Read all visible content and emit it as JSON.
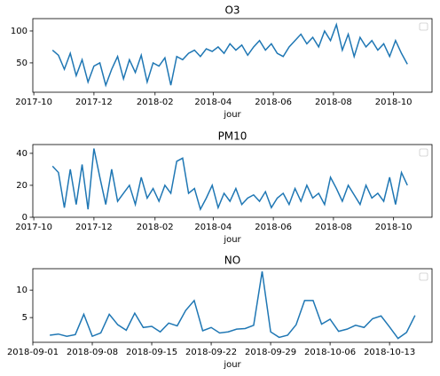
{
  "chart_data": [
    {
      "type": "line",
      "title": "O3",
      "xlabel": "jour",
      "x": [
        "2017-10-20",
        "2017-10-26",
        "2017-11-01",
        "2017-11-07",
        "2017-11-13",
        "2017-11-19",
        "2017-11-25",
        "2017-12-01",
        "2017-12-07",
        "2017-12-13",
        "2017-12-19",
        "2017-12-25",
        "2017-12-31",
        "2018-01-06",
        "2018-01-12",
        "2018-01-18",
        "2018-01-24",
        "2018-01-30",
        "2018-02-05",
        "2018-02-11",
        "2018-02-17",
        "2018-02-23",
        "2018-03-01",
        "2018-03-07",
        "2018-03-13",
        "2018-03-19",
        "2018-03-25",
        "2018-03-31",
        "2018-04-06",
        "2018-04-12",
        "2018-04-18",
        "2018-04-24",
        "2018-04-30",
        "2018-05-06",
        "2018-05-12",
        "2018-05-18",
        "2018-05-24",
        "2018-05-30",
        "2018-06-05",
        "2018-06-11",
        "2018-06-17",
        "2018-06-23",
        "2018-06-29",
        "2018-07-05",
        "2018-07-11",
        "2018-07-17",
        "2018-07-23",
        "2018-07-29",
        "2018-08-04",
        "2018-08-10",
        "2018-08-16",
        "2018-08-22",
        "2018-08-28",
        "2018-09-03",
        "2018-09-09",
        "2018-09-15",
        "2018-09-21",
        "2018-09-27",
        "2018-10-03",
        "2018-10-09",
        "2018-10-15"
      ],
      "series": [
        {
          "color": "#1f77b4",
          "values": [
            70,
            62,
            40,
            65,
            30,
            55,
            20,
            45,
            50,
            15,
            40,
            60,
            25,
            55,
            35,
            62,
            20,
            50,
            45,
            58,
            15,
            60,
            55,
            65,
            70,
            60,
            72,
            68,
            75,
            65,
            80,
            70,
            78,
            62,
            75,
            85,
            70,
            80,
            65,
            60,
            75,
            85,
            95,
            80,
            90,
            75,
            100,
            85,
            110,
            70,
            95,
            60,
            90,
            75,
            85,
            70,
            80,
            60,
            85,
            65,
            48
          ]
        }
      ],
      "xlim": [
        "2017-09-30",
        "2018-11-09"
      ],
      "xticks": [
        {
          "value": "2017-10-01",
          "label": "2017-10"
        },
        {
          "value": "2017-12-01",
          "label": "2017-12"
        },
        {
          "value": "2018-02-01",
          "label": "2018-02"
        },
        {
          "value": "2018-04-01",
          "label": "2018-04"
        },
        {
          "value": "2018-06-01",
          "label": "2018-06"
        },
        {
          "value": "2018-08-01",
          "label": "2018-08"
        },
        {
          "value": "2018-10-01",
          "label": "2018-10"
        }
      ],
      "ylim": [
        4,
        119.4
      ],
      "yticks": [
        50,
        100
      ]
    },
    {
      "type": "line",
      "title": "PM10",
      "xlabel": "jour",
      "x": [
        "2017-10-20",
        "2017-10-26",
        "2017-11-01",
        "2017-11-07",
        "2017-11-13",
        "2017-11-19",
        "2017-11-25",
        "2017-12-01",
        "2017-12-07",
        "2017-12-13",
        "2017-12-19",
        "2017-12-25",
        "2017-12-31",
        "2018-01-06",
        "2018-01-12",
        "2018-01-18",
        "2018-01-24",
        "2018-01-30",
        "2018-02-05",
        "2018-02-11",
        "2018-02-17",
        "2018-02-23",
        "2018-03-01",
        "2018-03-07",
        "2018-03-13",
        "2018-03-19",
        "2018-03-25",
        "2018-03-31",
        "2018-04-06",
        "2018-04-12",
        "2018-04-18",
        "2018-04-24",
        "2018-04-30",
        "2018-05-06",
        "2018-05-12",
        "2018-05-18",
        "2018-05-24",
        "2018-05-30",
        "2018-06-05",
        "2018-06-11",
        "2018-06-17",
        "2018-06-23",
        "2018-06-29",
        "2018-07-05",
        "2018-07-11",
        "2018-07-17",
        "2018-07-23",
        "2018-07-29",
        "2018-08-04",
        "2018-08-10",
        "2018-08-16",
        "2018-08-22",
        "2018-08-28",
        "2018-09-03",
        "2018-09-09",
        "2018-09-15",
        "2018-09-21",
        "2018-09-27",
        "2018-10-03",
        "2018-10-09",
        "2018-10-15"
      ],
      "series": [
        {
          "color": "#1f77b4",
          "values": [
            32,
            28,
            6,
            30,
            8,
            33,
            5,
            43,
            25,
            8,
            30,
            10,
            15,
            20,
            8,
            25,
            12,
            18,
            10,
            20,
            15,
            35,
            37,
            15,
            18,
            5,
            12,
            20,
            6,
            15,
            10,
            18,
            8,
            12,
            14,
            10,
            16,
            6,
            12,
            15,
            8,
            18,
            10,
            20,
            12,
            15,
            8,
            25,
            18,
            10,
            20,
            14,
            8,
            20,
            12,
            15,
            10,
            25,
            8,
            28,
            20
          ]
        }
      ],
      "xlim": [
        "2017-09-30",
        "2018-11-09"
      ],
      "xticks": [
        {
          "value": "2017-10-01",
          "label": "2017-10"
        },
        {
          "value": "2017-12-01",
          "label": "2017-12"
        },
        {
          "value": "2018-02-01",
          "label": "2018-02"
        },
        {
          "value": "2018-04-01",
          "label": "2018-04"
        },
        {
          "value": "2018-06-01",
          "label": "2018-06"
        },
        {
          "value": "2018-08-01",
          "label": "2018-08"
        },
        {
          "value": "2018-10-01",
          "label": "2018-10"
        }
      ],
      "ylim": [
        0,
        45.5
      ],
      "yticks": [
        0,
        20,
        40
      ]
    },
    {
      "type": "line",
      "title": "NO",
      "xlabel": "jour",
      "x": [
        "2018-09-03",
        "2018-09-04",
        "2018-09-05",
        "2018-09-06",
        "2018-09-07",
        "2018-09-08",
        "2018-09-09",
        "2018-09-10",
        "2018-09-11",
        "2018-09-12",
        "2018-09-13",
        "2018-09-14",
        "2018-09-15",
        "2018-09-16",
        "2018-09-17",
        "2018-09-18",
        "2018-09-19",
        "2018-09-20",
        "2018-09-21",
        "2018-09-22",
        "2018-09-23",
        "2018-09-24",
        "2018-09-25",
        "2018-09-26",
        "2018-09-27",
        "2018-09-28",
        "2018-09-29",
        "2018-09-30",
        "2018-10-01",
        "2018-10-02",
        "2018-10-03",
        "2018-10-04",
        "2018-10-05",
        "2018-10-06",
        "2018-10-07",
        "2018-10-08",
        "2018-10-09",
        "2018-10-10",
        "2018-10-11",
        "2018-10-12",
        "2018-10-13",
        "2018-10-14",
        "2018-10-15",
        "2018-10-16"
      ],
      "series": [
        {
          "color": "#1f77b4",
          "values": [
            1.8,
            2.0,
            1.6,
            1.9,
            5.6,
            1.6,
            2.2,
            5.6,
            3.7,
            2.7,
            5.8,
            3.2,
            3.4,
            2.4,
            4.0,
            3.5,
            6.3,
            8.1,
            2.6,
            3.2,
            2.2,
            2.4,
            2.9,
            3.0,
            3.6,
            13.4,
            2.4,
            1.4,
            1.8,
            3.7,
            8.1,
            8.1,
            3.8,
            4.7,
            2.5,
            2.9,
            3.6,
            3.2,
            4.8,
            5.3,
            3.3,
            1.2,
            2.3,
            5.4
          ]
        }
      ],
      "xlim": [
        "2018-09-01",
        "2018-10-18"
      ],
      "xticks": [
        "2018-09-01",
        "2018-09-08",
        "2018-09-15",
        "2018-09-22",
        "2018-09-29",
        "2018-10-06",
        "2018-10-13"
      ],
      "ylim": [
        0.5,
        13.9
      ],
      "yticks": [
        5,
        10
      ]
    }
  ]
}
